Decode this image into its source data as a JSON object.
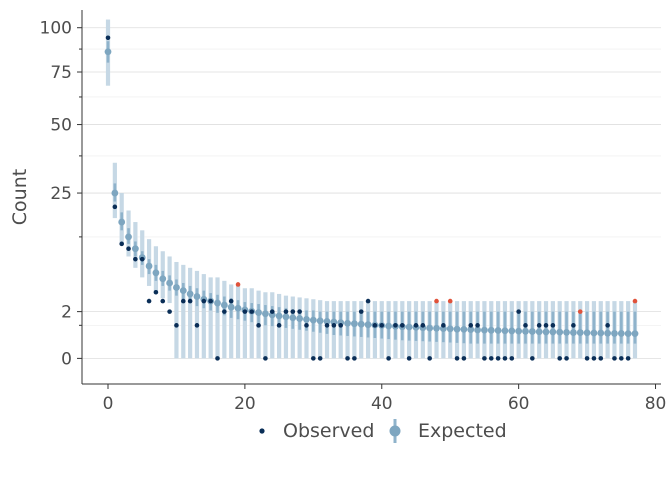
{
  "chart_data": {
    "type": "scatter",
    "title": "",
    "xlabel": "",
    "ylabel": "Count",
    "xlim": [
      -3.8,
      80.8
    ],
    "x_ticks": [
      0,
      20,
      40,
      60,
      80
    ],
    "y_ticks": [
      0,
      2,
      25,
      50,
      75,
      100
    ],
    "y_scale": "sqrt",
    "ylim": [
      -0.6,
      111
    ],
    "grid": true,
    "legend_position": "bottom",
    "colors": {
      "observed": "#0a2e57",
      "observed_outlier": "#e0523a",
      "expected": "#7ea6c0",
      "interval_inner": "#8fb3cb",
      "interval_outer": "#c6d8e5",
      "axis": "#333333",
      "grid": "#dedede"
    },
    "series": [
      {
        "name": "Observed",
        "x": [
          0,
          1,
          2,
          3,
          4,
          5,
          6,
          7,
          8,
          9,
          10,
          11,
          12,
          13,
          14,
          15,
          16,
          17,
          18,
          19,
          20,
          21,
          22,
          23,
          24,
          25,
          26,
          27,
          28,
          29,
          30,
          31,
          32,
          33,
          34,
          35,
          36,
          37,
          38,
          39,
          40,
          41,
          42,
          43,
          44,
          45,
          46,
          47,
          48,
          49,
          50,
          51,
          52,
          53,
          54,
          55,
          56,
          57,
          58,
          59,
          60,
          61,
          62,
          63,
          64,
          65,
          66,
          67,
          68,
          69,
          70,
          71,
          72,
          73,
          74,
          75,
          76,
          77
        ],
        "values": [
          94,
          21,
          12,
          11,
          9,
          9,
          3,
          4,
          3,
          2,
          1,
          3,
          3,
          1,
          3,
          3,
          0,
          2,
          3,
          5,
          2,
          2,
          1,
          0,
          2,
          1,
          2,
          2,
          2,
          1,
          0,
          0,
          1,
          1,
          1,
          0,
          0,
          2,
          3,
          1,
          1,
          0,
          1,
          1,
          0,
          1,
          1,
          0,
          3,
          1,
          3,
          0,
          0,
          1,
          1,
          0,
          0,
          0,
          0,
          0,
          2,
          1,
          0,
          1,
          1,
          1,
          0,
          0,
          1,
          2,
          0,
          0,
          0,
          1,
          0,
          0,
          0,
          3
        ],
        "outlier_x": [
          19,
          48,
          50,
          69,
          77
        ]
      },
      {
        "name": "Expected",
        "x": [
          0,
          1,
          2,
          3,
          4,
          5,
          6,
          7,
          8,
          9,
          10,
          11,
          12,
          13,
          14,
          15,
          16,
          17,
          18,
          19,
          20,
          21,
          22,
          23,
          24,
          25,
          26,
          27,
          28,
          29,
          30,
          31,
          32,
          33,
          34,
          35,
          36,
          37,
          38,
          39,
          40,
          41,
          42,
          43,
          44,
          45,
          46,
          47,
          48,
          49,
          50,
          51,
          52,
          53,
          54,
          55,
          56,
          57,
          58,
          59,
          60,
          61,
          62,
          63,
          64,
          65,
          66,
          67,
          68,
          69,
          70,
          71,
          72,
          73,
          74,
          75,
          76,
          77
        ],
        "values": [
          86,
          25,
          17,
          13.5,
          11,
          9.3,
          7.8,
          6.7,
          5.8,
          5.2,
          4.6,
          4.2,
          3.8,
          3.5,
          3.2,
          3.0,
          2.8,
          2.6,
          2.4,
          2.3,
          2.15,
          2.03,
          1.92,
          1.82,
          1.73,
          1.65,
          1.58,
          1.51,
          1.45,
          1.39,
          1.34,
          1.29,
          1.25,
          1.21,
          1.17,
          1.13,
          1.1,
          1.07,
          1.04,
          1.01,
          0.99,
          0.96,
          0.94,
          0.92,
          0.9,
          0.88,
          0.86,
          0.84,
          0.83,
          0.81,
          0.8,
          0.78,
          0.77,
          0.76,
          0.74,
          0.73,
          0.72,
          0.71,
          0.7,
          0.69,
          0.68,
          0.67,
          0.66,
          0.65,
          0.64,
          0.64,
          0.63,
          0.62,
          0.61,
          0.61,
          0.6,
          0.59,
          0.59,
          0.58,
          0.57,
          0.57,
          0.56,
          0.56
        ],
        "ci50_low": [
          80,
          22.5,
          15,
          12,
          9.5,
          8,
          6.5,
          5.5,
          4.8,
          4.2,
          3.6,
          3.2,
          2.8,
          2.5,
          2.3,
          2.1,
          1.9,
          1.7,
          1.5,
          1.4,
          1.3,
          1.2,
          1.1,
          1.0,
          0.95,
          0.9,
          0.85,
          0.8,
          0.75,
          0.7,
          0.65,
          0.6,
          0.55,
          0.5,
          0.48,
          0.46,
          0.44,
          0.42,
          0.4,
          0.38,
          0.36,
          0.34,
          0.32,
          0.3,
          0.29,
          0.28,
          0.27,
          0.26,
          0.25,
          0.24,
          0.23,
          0.22,
          0.21,
          0.2,
          0.2,
          0.2,
          0.2,
          0.2,
          0.2,
          0.2,
          0.2,
          0.2,
          0.2,
          0.2,
          0.2,
          0.2,
          0.2,
          0.2,
          0.2,
          0.2,
          0.2,
          0.2,
          0.2,
          0.2,
          0.2,
          0.2,
          0.2,
          0.2
        ],
        "ci50_high": [
          92,
          28,
          19.5,
          15.5,
          12.5,
          10.5,
          9,
          8,
          7,
          6.3,
          5.7,
          5.2,
          4.8,
          4.5,
          4.2,
          3.9,
          3.7,
          3.5,
          3.3,
          3.1,
          2.9,
          2.8,
          2.7,
          2.6,
          2.5,
          2.4,
          2.3,
          2.2,
          2.2,
          2.1,
          2.1,
          2.0,
          2.0,
          2.0,
          2.0,
          2.0,
          2.0,
          2.0,
          2.0,
          2.0,
          2.0,
          2.0,
          2.0,
          2.0,
          2.0,
          2.0,
          2.0,
          2.0,
          2.0,
          2.0,
          2.0,
          2.0,
          2.0,
          2.0,
          2.0,
          2.0,
          2.0,
          2.0,
          2.0,
          2.0,
          2.0,
          2.0,
          2.0,
          2.0,
          2.0,
          2.0,
          2.0,
          2.0,
          2.0,
          2.0,
          2.0,
          2.0,
          2.0,
          2.0,
          2.0,
          2.0,
          2.0,
          2.0
        ],
        "ci95_low": [
          68,
          18,
          12,
          9.5,
          7.5,
          6,
          4.8,
          4,
          3.3,
          2.8,
          0,
          0,
          0,
          0,
          0,
          0,
          0,
          0,
          0,
          0,
          0,
          0,
          0,
          0,
          0,
          0,
          0,
          0,
          0,
          0,
          0,
          0,
          0,
          0,
          0,
          0,
          0,
          0,
          0,
          0,
          0,
          0,
          0,
          0,
          0,
          0,
          0,
          0,
          0,
          0,
          0,
          0,
          0,
          0,
          0,
          0,
          0,
          0,
          0,
          0,
          0,
          0,
          0,
          0,
          0,
          0,
          0,
          0,
          0,
          0,
          0,
          0,
          0,
          0,
          0,
          0,
          0,
          0
        ],
        "ci95_high": [
          105,
          35,
          25,
          20,
          17,
          15,
          13,
          11.5,
          10.5,
          9.5,
          8.5,
          8,
          7.5,
          7,
          6.5,
          6,
          6,
          5.5,
          5,
          5,
          4.5,
          4.5,
          4.2,
          4,
          4,
          3.8,
          3.6,
          3.5,
          3.4,
          3.3,
          3.2,
          3.1,
          3,
          3,
          3,
          3,
          3,
          3,
          3,
          3,
          3,
          3,
          3,
          3,
          3,
          3,
          3,
          3,
          3,
          3,
          3,
          3,
          3,
          3,
          3,
          3,
          3,
          3,
          3,
          3,
          3,
          3,
          3,
          3,
          3,
          3,
          3,
          3,
          3,
          3,
          3,
          3,
          3,
          3,
          3,
          3,
          3,
          3
        ]
      }
    ]
  }
}
